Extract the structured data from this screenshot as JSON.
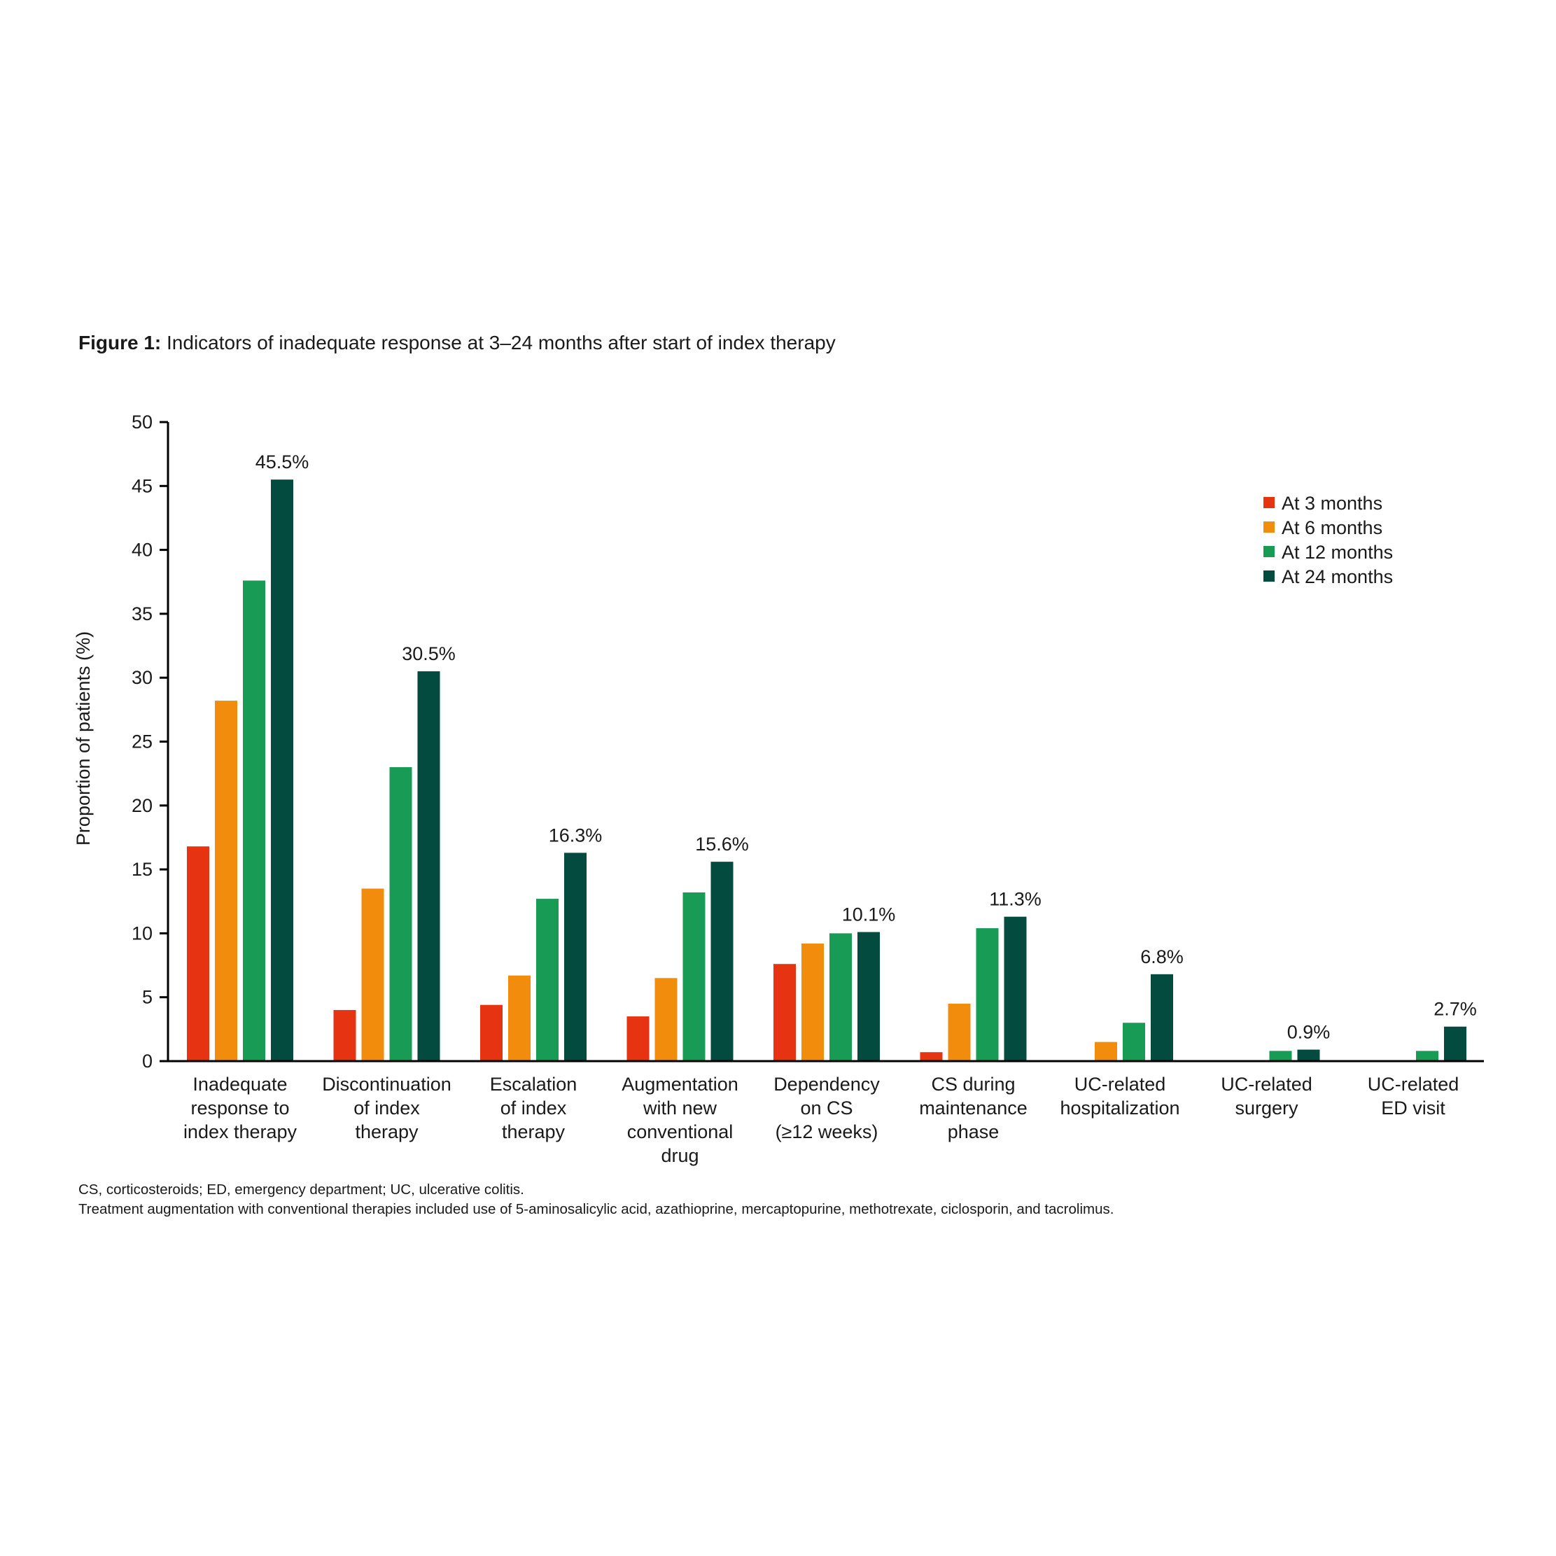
{
  "figure": {
    "label": "Figure 1:",
    "title": "Indicators of inadequate response at 3–24 months after start of index therapy"
  },
  "footnotes": [
    "CS, corticosteroids; ED, emergency department; UC, ulcerative colitis.",
    "Treatment augmentation with conventional therapies included use of 5-aminosalicylic acid, azathioprine, mercaptopurine, methotrexate, ciclosporin, and tacrolimus."
  ],
  "colors": {
    "At 3 months": "#e63312",
    "At 6 months": "#f28c0c",
    "At 12 months": "#179b55",
    "At 24 months": "#034a3f"
  },
  "chart_data": {
    "type": "bar",
    "title": "",
    "xlabel": "",
    "ylabel": "Proportion of patients (%)",
    "ylim": [
      0,
      50
    ],
    "yticks": [
      0,
      5,
      10,
      15,
      20,
      25,
      30,
      35,
      40,
      45,
      50
    ],
    "grid": false,
    "legend_position": "top-right",
    "categories": [
      [
        "Inadequate",
        "response to",
        "index therapy"
      ],
      [
        "Discontinuation",
        "of index",
        "therapy"
      ],
      [
        "Escalation",
        "of index",
        "therapy"
      ],
      [
        "Augmentation",
        "with new",
        "conventional",
        "drug"
      ],
      [
        "Dependency",
        "on CS",
        "(≥12 weeks)"
      ],
      [
        "CS during",
        "maintenance",
        "phase"
      ],
      [
        "UC-related",
        "hospitalization"
      ],
      [
        "UC-related",
        "surgery"
      ],
      [
        "UC-related",
        "ED visit"
      ]
    ],
    "series": [
      {
        "name": "At 3 months",
        "values": [
          16.8,
          4.0,
          4.4,
          3.5,
          7.6,
          0.7,
          0,
          0,
          0
        ]
      },
      {
        "name": "At 6 months",
        "values": [
          28.2,
          13.5,
          6.7,
          6.5,
          9.2,
          4.5,
          1.5,
          0,
          0
        ]
      },
      {
        "name": "At 12 months",
        "values": [
          37.6,
          23.0,
          12.7,
          13.2,
          10.0,
          10.4,
          3.0,
          0.8,
          0.8
        ]
      },
      {
        "name": "At 24 months",
        "values": [
          45.5,
          30.5,
          16.3,
          15.6,
          10.1,
          11.3,
          6.8,
          0.9,
          2.7
        ]
      }
    ],
    "data_labels": [
      "45.5%",
      "30.5%",
      "16.3%",
      "15.6%",
      "10.1%",
      "11.3%",
      "6.8%",
      "0.9%",
      "2.7%"
    ]
  }
}
